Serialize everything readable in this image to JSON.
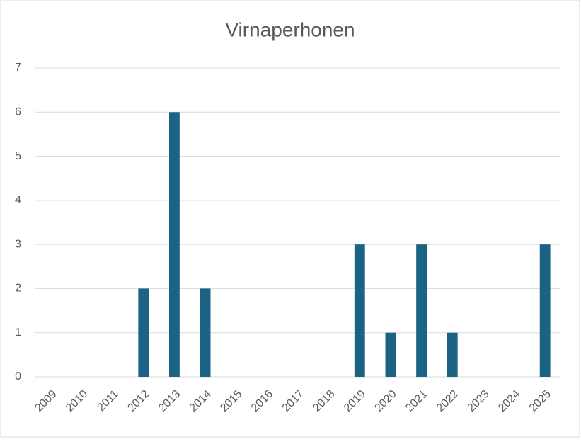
{
  "chart_data": {
    "type": "bar",
    "title": "Virnaperhonen",
    "categories": [
      "2009",
      "2010",
      "2011",
      "2012",
      "2013",
      "2014",
      "2015",
      "2016",
      "2017",
      "2018",
      "2019",
      "2020",
      "2021",
      "2022",
      "2023",
      "2024",
      "2025"
    ],
    "values": [
      0,
      0,
      0,
      2,
      6,
      2,
      0,
      0,
      0,
      0,
      3,
      1,
      3,
      1,
      0,
      0,
      3
    ],
    "color": "#1b6384",
    "ylim": [
      0,
      7
    ],
    "yticks": [
      0,
      1,
      2,
      3,
      4,
      5,
      6,
      7
    ],
    "grid": true
  }
}
